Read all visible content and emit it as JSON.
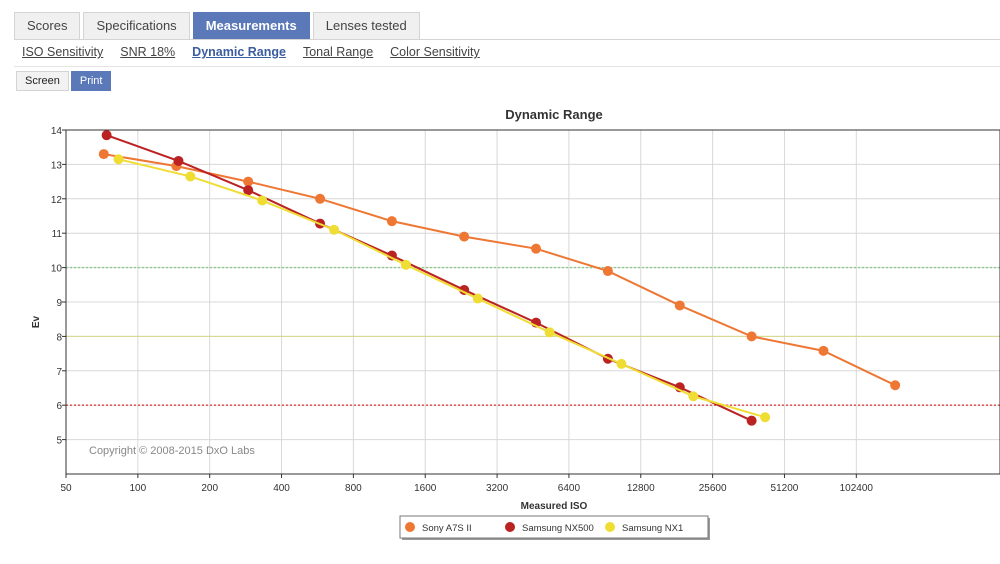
{
  "tabs": [
    {
      "label": "Scores",
      "active": false
    },
    {
      "label": "Specifications",
      "active": false
    },
    {
      "label": "Measurements",
      "active": true
    },
    {
      "label": "Lenses tested",
      "active": false
    }
  ],
  "subtabs": [
    {
      "label": "ISO Sensitivity",
      "active": false
    },
    {
      "label": "SNR 18%",
      "active": false
    },
    {
      "label": "Dynamic Range",
      "active": true
    },
    {
      "label": "Tonal Range",
      "active": false
    },
    {
      "label": "Color Sensitivity",
      "active": false
    }
  ],
  "view_toggle": {
    "screen": "Screen",
    "print": "Print",
    "active": "print"
  },
  "copyright": "Copyright © 2008-2015 DxO Labs",
  "chart_data": {
    "type": "line",
    "title": "Dynamic Range",
    "xlabel": "Measured ISO",
    "ylabel": "Ev",
    "x_scale": "log2",
    "x_ticks": [
      50,
      100,
      200,
      400,
      800,
      1600,
      3200,
      6400,
      12800,
      25600,
      51200,
      102400
    ],
    "xlim": [
      50,
      409600
    ],
    "ylim": [
      4,
      14
    ],
    "y_ticks": [
      5,
      6,
      7,
      8,
      9,
      10,
      11,
      12,
      13,
      14
    ],
    "grid": true,
    "legend_position": "bottom-center",
    "reference_lines": [
      {
        "y": 10,
        "color": "#88cc88",
        "style": "dotted"
      },
      {
        "y": 8,
        "color": "#d8d888",
        "style": "solid"
      },
      {
        "y": 6,
        "color": "#dd4444",
        "style": "dotted"
      }
    ],
    "series": [
      {
        "name": "Sony A7S II",
        "color": "#ee7733",
        "x": [
          72,
          145,
          290,
          580,
          1160,
          2330,
          4660,
          9320,
          18650,
          37300,
          74600,
          149000
        ],
        "y": [
          13.3,
          12.95,
          12.5,
          12.0,
          11.35,
          10.9,
          10.55,
          9.9,
          8.9,
          8.0,
          7.58,
          6.58
        ]
      },
      {
        "name": "Samsung NX500",
        "color": "#bb2222",
        "x": [
          74,
          148,
          290,
          580,
          1160,
          2330,
          4660,
          9320,
          18650,
          37300
        ],
        "y": [
          13.85,
          13.1,
          12.25,
          11.28,
          10.35,
          9.35,
          8.4,
          7.35,
          6.52,
          5.55
        ]
      },
      {
        "name": "Samsung NX1",
        "color": "#f0dd33",
        "x": [
          83,
          166,
          332,
          664,
          1328,
          2656,
          5312,
          10624,
          21248,
          42496
        ],
        "y": [
          13.15,
          12.65,
          11.95,
          11.1,
          10.08,
          9.1,
          8.12,
          7.2,
          6.26,
          5.65
        ]
      }
    ]
  }
}
